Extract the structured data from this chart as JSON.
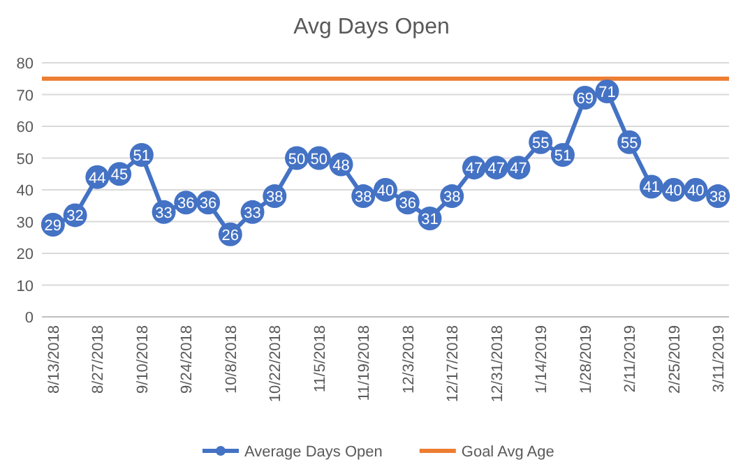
{
  "chart_data": {
    "type": "line",
    "title": "Avg Days Open",
    "categories": [
      "8/13/2018",
      null,
      "8/27/2018",
      null,
      "9/10/2018",
      null,
      "9/24/2018",
      null,
      "10/8/2018",
      null,
      "10/22/2018",
      null,
      "11/5/2018",
      null,
      "11/19/2018",
      null,
      "12/3/2018",
      null,
      "12/17/2018",
      null,
      "12/31/2018",
      null,
      "1/14/2019",
      null,
      "1/28/2019",
      null,
      "2/11/2019",
      null,
      "2/25/2019",
      null,
      "3/11/2019"
    ],
    "series": [
      {
        "name": "Average Days Open",
        "color": "#4472c4",
        "values": [
          29,
          32,
          44,
          45,
          51,
          33,
          36,
          36,
          26,
          33,
          38,
          50,
          50,
          48,
          38,
          40,
          36,
          31,
          38,
          47,
          47,
          47,
          55,
          51,
          69,
          71,
          55,
          41,
          40,
          40,
          38
        ]
      }
    ],
    "ylim": [
      0,
      80
    ],
    "yticks": [
      0,
      10,
      20,
      30,
      40,
      50,
      60,
      70,
      80
    ],
    "grid": "y",
    "marker": "circle",
    "line_style": "solid",
    "data_labels": true,
    "legend": "bottom",
    "ref_lines": [
      {
        "axis": "y",
        "value": 75,
        "label": "Goal Avg Age",
        "color": "#ed7d31",
        "line_style": "solid"
      }
    ]
  }
}
